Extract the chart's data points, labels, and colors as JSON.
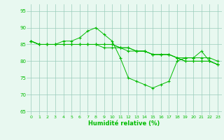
{
  "title": "",
  "xlabel": "Humidité relative (%)",
  "ylabel": "",
  "xlim": [
    -0.5,
    23.5
  ],
  "ylim": [
    64,
    97
  ],
  "yticks": [
    65,
    70,
    75,
    80,
    85,
    90,
    95
  ],
  "xticks": [
    0,
    1,
    2,
    3,
    4,
    5,
    6,
    7,
    8,
    9,
    10,
    11,
    12,
    13,
    14,
    15,
    16,
    17,
    18,
    19,
    20,
    21,
    22,
    23
  ],
  "bg_color": "#e8f8f0",
  "grid_color": "#99ccbb",
  "line_color": "#00bb00",
  "series": [
    [
      86,
      85,
      85,
      85,
      86,
      86,
      87,
      89,
      90,
      88,
      86,
      81,
      75,
      74,
      73,
      72,
      73,
      74,
      80,
      81,
      81,
      83,
      80,
      79
    ],
    [
      86,
      85,
      85,
      85,
      85,
      85,
      85,
      85,
      85,
      85,
      85,
      84,
      84,
      83,
      83,
      82,
      82,
      82,
      81,
      81,
      81,
      81,
      81,
      80
    ],
    [
      86,
      85,
      85,
      85,
      85,
      85,
      85,
      85,
      85,
      85,
      85,
      84,
      84,
      83,
      83,
      82,
      82,
      82,
      81,
      80,
      80,
      80,
      80,
      79
    ],
    [
      86,
      85,
      85,
      85,
      85,
      85,
      85,
      85,
      85,
      84,
      84,
      84,
      83,
      83,
      83,
      82,
      82,
      82,
      81,
      80,
      80,
      80,
      80,
      79
    ]
  ]
}
